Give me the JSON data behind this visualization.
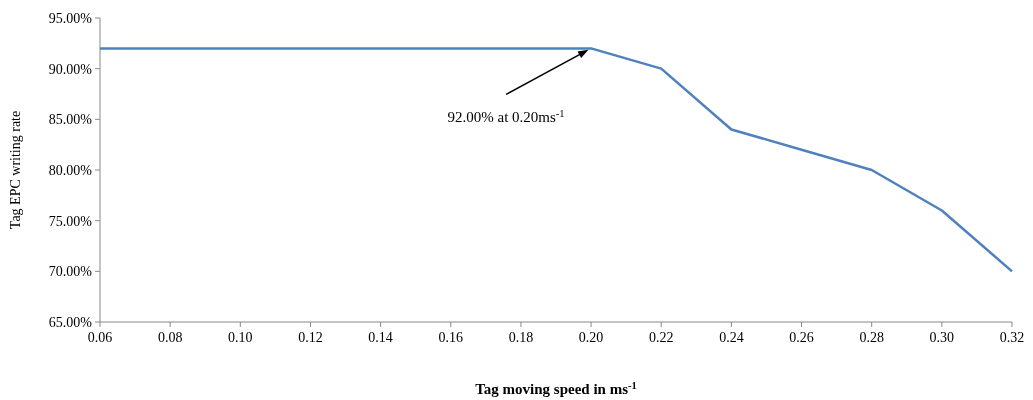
{
  "chart_data": {
    "type": "line",
    "xlabel": "Tag moving speed in ms$^{-1}$",
    "ylabel": "Tag EPC writing rate",
    "x": [
      0.06,
      0.08,
      0.1,
      0.12,
      0.14,
      0.16,
      0.18,
      0.2,
      0.22,
      0.24,
      0.26,
      0.28,
      0.3,
      0.32
    ],
    "series": [
      {
        "color": "#4f81bd",
        "values": [
          92,
          92,
          92,
          92,
          92,
          92,
          92,
          92,
          90,
          84,
          82,
          80,
          76,
          70
        ]
      }
    ],
    "xlim": [
      0.06,
      0.32
    ],
    "xticks": [
      {
        "value": 0.06,
        "label": "0.06"
      },
      {
        "value": 0.08,
        "label": "0.08"
      },
      {
        "value": 0.1,
        "label": "0.10"
      },
      {
        "value": 0.12,
        "label": "0.12"
      },
      {
        "value": 0.14,
        "label": "0.14"
      },
      {
        "value": 0.16,
        "label": "0.16"
      },
      {
        "value": 0.18,
        "label": "0.18"
      },
      {
        "value": 0.2,
        "label": "0.20"
      },
      {
        "value": 0.22,
        "label": "0.22"
      },
      {
        "value": 0.24,
        "label": "0.24"
      },
      {
        "value": 0.26,
        "label": "0.26"
      },
      {
        "value": 0.28,
        "label": "0.28"
      },
      {
        "value": 0.3,
        "label": "0.30"
      },
      {
        "value": 0.32,
        "label": "0.32"
      }
    ],
    "ylim": [
      65,
      95
    ],
    "yticks": [
      {
        "value": 65,
        "label": "65.00%"
      },
      {
        "value": 70,
        "label": "70.00%"
      },
      {
        "value": 75,
        "label": "75.00%"
      },
      {
        "value": 80,
        "label": "80.00%"
      },
      {
        "value": 85,
        "label": "85.00%"
      },
      {
        "value": 90,
        "label": "90.00%"
      },
      {
        "value": 95,
        "label": "95.00%"
      }
    ],
    "annotations": [
      {
        "text": "92.00% at 0.20ms$^{-1}$",
        "x": 0.2,
        "y": 92
      }
    ],
    "grid": false,
    "marker": "none",
    "line_style": "solid"
  }
}
